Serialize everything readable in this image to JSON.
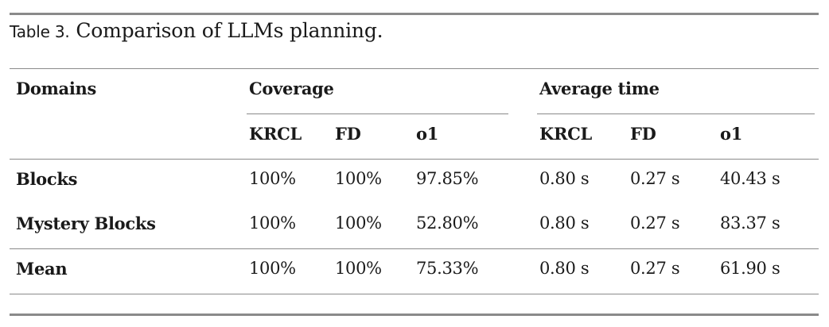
{
  "caption": {
    "label": "Table 3.",
    "text": "Comparison of LLMs planning."
  },
  "header": {
    "domains": "Domains",
    "coverage": "Coverage",
    "average_time": "Average time",
    "sub": [
      "KRCL",
      "FD",
      "o1",
      "KRCL",
      "FD",
      "o1"
    ]
  },
  "rows": [
    {
      "domain": "Blocks",
      "values": [
        "100%",
        "100%",
        "97.85%",
        "0.80 s",
        "0.27 s",
        "40.43 s"
      ]
    },
    {
      "domain": "Mystery Blocks",
      "values": [
        "100%",
        "100%",
        "52.80%",
        "0.80 s",
        "0.27 s",
        "83.37 s"
      ]
    },
    {
      "domain": "Mean",
      "values": [
        "100%",
        "100%",
        "75.33%",
        "0.80 s",
        "0.27 s",
        "61.90 s"
      ]
    }
  ]
}
